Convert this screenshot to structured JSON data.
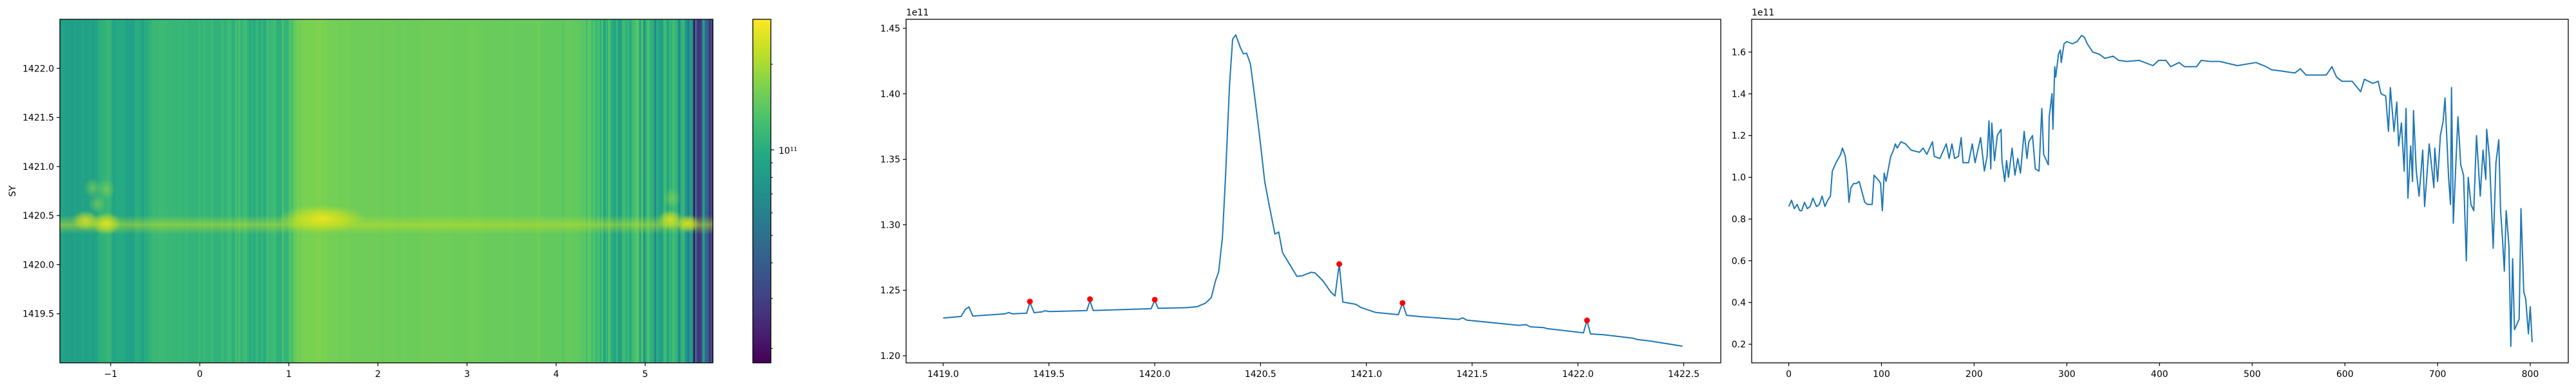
{
  "chart_data": [
    {
      "type": "heatmap",
      "ylabel": "SY",
      "xlim": [
        -1.57,
        5.76
      ],
      "ylim": [
        1419.0,
        1422.5
      ],
      "x_ticks": [
        "-1",
        "0",
        "1",
        "2",
        "3",
        "4",
        "5"
      ],
      "y_ticks": [
        "1419.5",
        "1420.0",
        "1420.5",
        "1421.0",
        "1421.5",
        "1422.0"
      ],
      "band_center_y": 1420.4,
      "colorbar": {
        "cmap": "viridis",
        "scale": "log",
        "range": [
          17800000000.0,
          288000000000.0
        ],
        "major_tick": 100000000000.0,
        "major_tick_label": "10¹¹",
        "minor_ticks": [
          20000000000.0,
          30000000000.0,
          40000000000.0,
          50000000000.0,
          60000000000.0,
          70000000000.0,
          80000000000.0,
          90000000000.0,
          200000000000.0
        ]
      }
    },
    {
      "type": "line",
      "offset_label": "1e11",
      "xlim": [
        1418.825,
        1422.675
      ],
      "ylim": [
        1.1946,
        1.4569
      ],
      "x_ticks": [
        "1419.0",
        "1419.5",
        "1420.0",
        "1420.5",
        "1421.0",
        "1421.5",
        "1422.0",
        "1422.5"
      ],
      "y_ticks": [
        "1.20",
        "1.25",
        "1.30",
        "1.35",
        "1.40",
        "1.45"
      ],
      "line_color": "#1f77b4",
      "marker_color": "#ff0000",
      "x": [
        1419.0,
        1419.085,
        1419.105,
        1419.122,
        1419.14,
        1419.29,
        1419.31,
        1419.327,
        1419.395,
        1419.41,
        1419.43,
        1419.47,
        1419.48,
        1419.5,
        1419.54,
        1419.679,
        1419.694,
        1419.709,
        1419.983,
        1420.0,
        1420.016,
        1420.15,
        1420.2,
        1420.24,
        1420.267,
        1420.287,
        1420.302,
        1420.32,
        1420.335,
        1420.353,
        1420.368,
        1420.383,
        1420.404,
        1420.419,
        1420.434,
        1420.452,
        1420.47,
        1420.495,
        1420.52,
        1420.54,
        1420.568,
        1420.586,
        1420.604,
        1420.637,
        1420.672,
        1420.698,
        1420.738,
        1420.758,
        1420.796,
        1420.832,
        1420.852,
        1420.872,
        1420.889,
        1420.95,
        1420.974,
        1421.043,
        1421.151,
        1421.171,
        1421.19,
        1421.259,
        1421.437,
        1421.455,
        1421.475,
        1421.722,
        1421.753,
        1421.776,
        1421.838,
        1421.853,
        1422.026,
        1422.043,
        1422.059,
        1422.123,
        1422.262,
        1422.278,
        1422.34,
        1422.494
      ],
      "y": [
        1.2288,
        1.23,
        1.2354,
        1.2373,
        1.2303,
        1.232,
        1.233,
        1.232,
        1.2325,
        1.2407,
        1.2329,
        1.2336,
        1.2344,
        1.2338,
        1.2339,
        1.2345,
        1.2419,
        1.2346,
        1.2359,
        1.2424,
        1.2362,
        1.2367,
        1.2375,
        1.2402,
        1.2444,
        1.2572,
        1.264,
        1.2904,
        1.338,
        1.4059,
        1.4416,
        1.445,
        1.4356,
        1.4305,
        1.431,
        1.4229,
        1.4008,
        1.3685,
        1.3328,
        1.3158,
        1.2929,
        1.2945,
        1.2788,
        1.2699,
        1.2606,
        1.2611,
        1.2637,
        1.2632,
        1.257,
        1.2487,
        1.2457,
        1.27,
        1.241,
        1.2393,
        1.2369,
        1.2331,
        1.2314,
        1.2403,
        1.2309,
        1.2298,
        1.2277,
        1.229,
        1.2272,
        1.2232,
        1.2238,
        1.2221,
        1.2215,
        1.2208,
        1.2175,
        1.227,
        1.2167,
        1.216,
        1.2134,
        1.2125,
        1.2113,
        1.2073
      ],
      "markers": [
        [
          1419.41,
          1.2414
        ],
        [
          1419.694,
          1.2432
        ],
        [
          1420.0,
          1.2428
        ],
        [
          1420.872,
          1.27
        ],
        [
          1421.171,
          1.2403
        ],
        [
          1422.043,
          1.227
        ]
      ]
    },
    {
      "type": "line",
      "offset_label": "1e11",
      "xlim": [
        -40,
        841
      ],
      "ylim": [
        0.111,
        1.757
      ],
      "x_ticks": [
        "0",
        "100",
        "200",
        "300",
        "400",
        "500",
        "600",
        "700",
        "800"
      ],
      "y_ticks": [
        "0.2",
        "0.4",
        "0.6",
        "0.8",
        "1.0",
        "1.2",
        "1.4",
        "1.6"
      ],
      "line_color": "#1f77b4",
      "x": [
        0,
        3,
        6,
        9,
        12,
        14,
        17,
        20,
        23,
        26,
        30,
        33,
        36,
        39,
        42,
        45,
        47,
        51,
        56,
        58,
        61,
        63,
        65,
        67,
        70,
        73,
        76,
        79,
        82,
        85,
        90,
        92,
        98,
        99,
        101,
        103,
        105,
        107,
        110,
        113,
        115,
        117,
        121,
        126,
        132,
        141,
        145,
        149,
        155,
        157,
        163,
        170,
        173,
        176,
        179,
        183,
        186,
        188,
        194,
        198,
        201,
        205,
        207,
        211,
        214,
        216,
        218,
        219,
        222,
        225,
        229,
        230,
        233,
        235,
        237,
        241,
        244,
        247,
        250,
        254,
        257,
        259,
        263,
        266,
        270,
        273,
        275,
        279,
        280,
        281,
        284,
        285,
        287,
        288,
        291,
        293,
        294,
        297,
        300,
        306,
        311,
        316,
        319,
        322,
        328,
        335,
        341,
        350,
        356,
        365,
        378,
        393,
        399,
        407,
        412,
        421,
        427,
        440,
        445,
        455,
        465,
        484,
        504,
        515,
        521,
        530,
        546,
        552,
        558,
        571,
        580,
        586,
        591,
        597,
        608,
        617,
        621,
        630,
        636,
        639,
        644,
        647,
        649,
        653,
        656,
        658,
        661,
        664,
        666,
        668,
        671,
        673,
        674,
        677,
        680,
        684,
        686,
        691,
        696,
        697,
        700,
        703,
        706,
        708,
        712,
        714,
        715,
        717,
        720,
        722,
        725,
        728,
        731,
        733,
        736,
        739,
        742,
        746,
        749,
        752,
        753,
        756,
        760,
        763,
        766,
        768,
        770,
        772,
        774,
        777,
        779,
        781,
        783,
        788,
        790,
        793,
        795,
        798,
        800,
        802
      ],
      "y": [
        0.86,
        0.89,
        0.85,
        0.87,
        0.84,
        0.84,
        0.88,
        0.85,
        0.86,
        0.9,
        0.86,
        0.87,
        0.91,
        0.86,
        0.89,
        0.91,
        1.03,
        1.07,
        1.11,
        1.14,
        1.1,
        1.02,
        0.88,
        0.95,
        0.97,
        0.97,
        0.98,
        0.93,
        0.88,
        0.87,
        0.87,
        1.01,
        0.98,
        0.97,
        0.84,
        1.02,
        0.98,
        1.03,
        1.1,
        1.13,
        1.16,
        1.14,
        1.17,
        1.16,
        1.13,
        1.12,
        1.14,
        1.11,
        1.17,
        1.1,
        1.09,
        1.16,
        1.09,
        1.16,
        1.09,
        1.1,
        1.19,
        1.07,
        1.07,
        1.16,
        1.07,
        1.15,
        1.19,
        1.03,
        1.1,
        1.27,
        1.04,
        1.26,
        1.08,
        1.2,
        1.23,
        1.08,
        0.98,
        1.08,
        1.0,
        1.14,
        1.01,
        1.09,
        1.02,
        1.22,
        1.09,
        1.17,
        1.2,
        1.04,
        1.03,
        1.33,
        1.11,
        1.07,
        1.06,
        1.29,
        1.4,
        1.23,
        1.53,
        1.48,
        1.59,
        1.61,
        1.55,
        1.64,
        1.65,
        1.64,
        1.65,
        1.68,
        1.67,
        1.64,
        1.6,
        1.59,
        1.57,
        1.58,
        1.56,
        1.555,
        1.56,
        1.535,
        1.56,
        1.56,
        1.53,
        1.55,
        1.53,
        1.53,
        1.56,
        1.555,
        1.555,
        1.535,
        1.55,
        1.53,
        1.515,
        1.51,
        1.5,
        1.52,
        1.49,
        1.49,
        1.49,
        1.53,
        1.48,
        1.46,
        1.46,
        1.41,
        1.47,
        1.45,
        1.46,
        1.4,
        1.39,
        1.22,
        1.43,
        1.22,
        1.36,
        1.15,
        1.26,
        1.03,
        1.33,
        0.9,
        1.15,
        0.98,
        1.32,
        1.03,
        0.91,
        1.13,
        0.86,
        1.16,
        0.95,
        1.14,
        0.98,
        1.2,
        1.27,
        1.38,
        0.99,
        0.87,
        1.43,
        0.78,
        1.09,
        1.29,
        1.06,
        1.01,
        0.6,
        1.0,
        0.87,
        0.84,
        1.2,
        0.91,
        1.13,
        0.99,
        1.23,
        1.09,
        0.66,
        1.07,
        1.18,
        0.84,
        0.71,
        0.55,
        0.84,
        0.67,
        0.19,
        0.61,
        0.27,
        0.32,
        0.85,
        0.45,
        0.42,
        0.25,
        0.38,
        0.21
      ]
    }
  ]
}
